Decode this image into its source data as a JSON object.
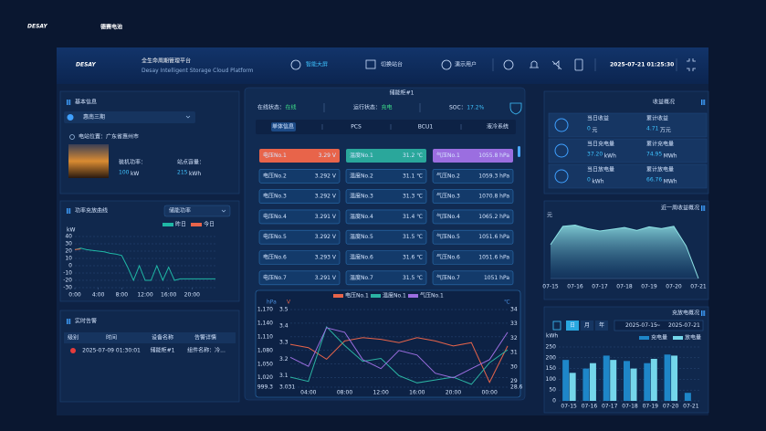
{
  "brand": {
    "logo": "DESAY",
    "name": "德赛电池"
  },
  "header": {
    "logo": "DESAY",
    "title": "全生命周期管理平台",
    "subtitle": "Desay Intelligent Storage Cloud Platform",
    "nav": [
      "智能大屏",
      "切换站台",
      "演示用户"
    ],
    "datetime": "2025-07-21 01:25:30"
  },
  "basic_info": {
    "title": "基本信息",
    "station": "惠南三期",
    "location": "电站位置：广东省惠州市",
    "power_label": "装机功率：",
    "power_value": "100",
    "power_unit": "kW",
    "capacity_label": "站点容量：",
    "capacity_value": "215",
    "capacity_unit": "kWh"
  },
  "power_chart": {
    "type": "line",
    "title": "功率充放曲线",
    "select": "储能功率",
    "y_unit": "kW",
    "x": [
      0,
      1,
      2,
      3,
      4,
      5,
      6,
      7,
      8,
      9,
      10,
      11,
      12,
      13,
      14,
      15,
      16,
      17,
      18,
      19,
      20,
      21,
      22,
      23,
      24
    ],
    "xlim": [
      0,
      24
    ],
    "xticks": [
      {
        "value": 0,
        "label": "0:00"
      },
      {
        "value": 4,
        "label": "4:00"
      },
      {
        "value": 8,
        "label": "8:00"
      },
      {
        "value": 12,
        "label": "12:00"
      },
      {
        "value": 16,
        "label": "16:00"
      },
      {
        "value": 20,
        "label": "20:00"
      }
    ],
    "ylim": [
      -30,
      40
    ],
    "yticks": [
      40,
      30,
      20,
      10,
      0,
      -10,
      -20,
      -30
    ],
    "grid": true,
    "series": [
      {
        "name": "昨日",
        "color": "#1fb8a6",
        "values": [
          22,
          24,
          22,
          21,
          20,
          19,
          17,
          16,
          14,
          -2,
          -20,
          0,
          -20,
          -20,
          0,
          -20,
          -2,
          -20,
          -18,
          -18,
          -18,
          -18,
          -18,
          -18,
          -18
        ]
      },
      {
        "name": "今日",
        "color": "#e8644a",
        "values": [
          22,
          23,
          null,
          null,
          null,
          null,
          null,
          null,
          null,
          null,
          null,
          null,
          null,
          null,
          null,
          null,
          null,
          null,
          null,
          null,
          null,
          null,
          null,
          null,
          null
        ]
      }
    ]
  },
  "alarms": {
    "title": "实时告警",
    "columns": [
      "级别",
      "时间",
      "设备名称",
      "告警详情"
    ],
    "rows": [
      {
        "time": "2025-07-09 01:30:01",
        "device": "储能柜#1",
        "detail": "组件名称：冷..."
      }
    ]
  },
  "cabinet": {
    "title": "储能柜#1",
    "online_label": "在线状态：",
    "online_value": "在线",
    "run_label": "运行状态：",
    "run_value": "充电",
    "soc_label": "SOC：",
    "soc_value": "17.2%",
    "tabs": [
      "单体信息",
      "PCS",
      "BCU1",
      "液冷系统"
    ],
    "cells": [
      [
        [
          "电压No.1",
          "3.29 V"
        ],
        [
          "温度No.1",
          "31.2 ℃"
        ],
        [
          "气压No.1",
          "1055.8 hPa"
        ]
      ],
      [
        [
          "电压No.2",
          "3.292 V"
        ],
        [
          "温度No.2",
          "31.1 ℃"
        ],
        [
          "气压No.2",
          "1059.3 hPa"
        ]
      ],
      [
        [
          "电压No.3",
          "3.292 V"
        ],
        [
          "温度No.3",
          "31.3 ℃"
        ],
        [
          "气压No.3",
          "1070.8 hPa"
        ]
      ],
      [
        [
          "电压No.4",
          "3.291 V"
        ],
        [
          "温度No.4",
          "31.4 ℃"
        ],
        [
          "气压No.4",
          "1065.2 hPa"
        ]
      ],
      [
        [
          "电压No.5",
          "3.292 V"
        ],
        [
          "温度No.5",
          "31.5 ℃"
        ],
        [
          "气压No.5",
          "1051.6 hPa"
        ]
      ],
      [
        [
          "电压No.6",
          "3.293 V"
        ],
        [
          "温度No.6",
          "31.6 ℃"
        ],
        [
          "气压No.6",
          "1051.6 hPa"
        ]
      ],
      [
        [
          "电压No.7",
          "3.291 V"
        ],
        [
          "温度No.7",
          "31.5 ℃"
        ],
        [
          "气压No.7",
          "1051 hPa"
        ]
      ]
    ]
  },
  "cell_chart": {
    "type": "line",
    "y_label": "hPa",
    "y2_label": "V",
    "y3_label": "℃",
    "categories": [
      null,
      "04:00",
      null,
      "08:00",
      null,
      "12:00",
      null,
      "16:00",
      null,
      "20:00",
      null,
      "00:00",
      null
    ],
    "ylim": [
      999.3,
      1170
    ],
    "yticks": [
      {
        "value": 1170,
        "label": "1,170"
      },
      {
        "value": 1140,
        "label": "1,140"
      },
      {
        "value": 1110,
        "label": "1,110"
      },
      {
        "value": 1080,
        "label": "1,080"
      },
      {
        "value": 1050,
        "label": "1,050"
      },
      {
        "value": 1020,
        "label": "1,020"
      },
      999.3
    ],
    "y2lim": [
      3.031,
      3.5
    ],
    "y2ticks": [
      3.5,
      3.4,
      3.3,
      3.2,
      3.1,
      3.031
    ],
    "y3lim": [
      28.6,
      34
    ],
    "y3ticks": [
      34,
      33,
      32,
      31,
      30,
      29,
      28.6
    ],
    "series": [
      {
        "name": "电压No.1",
        "color": "#e8644a",
        "axis": "y2",
        "values": [
          3.29,
          3.27,
          3.2,
          3.31,
          3.33,
          3.32,
          3.3,
          3.33,
          3.31,
          3.28,
          3.3,
          3.06,
          3.28
        ]
      },
      {
        "name": "温度No.1",
        "color": "#2bb3a3",
        "axis": "y3",
        "values": [
          29.3,
          29,
          32.8,
          31.5,
          30.4,
          30.6,
          29.4,
          28.9,
          29.1,
          29.3,
          28.8,
          30.3,
          31.2
        ]
      },
      {
        "name": "气压No.1",
        "color": "#9b6ee0",
        "axis": "y",
        "values": [
          1065,
          1045,
          1130,
          1120,
          1060,
          1040,
          1080,
          1070,
          1030,
          1020,
          1040,
          1060,
          1120
        ]
      }
    ]
  },
  "revenue": {
    "title": "收益概况",
    "items": [
      [
        {
          "label": "当日收益",
          "value": "0",
          "unit": "元"
        },
        {
          "label": "累计收益",
          "value": "4.71",
          "unit": "万元"
        }
      ],
      [
        {
          "label": "当日充电量",
          "value": "37.20",
          "unit": "kWh"
        },
        {
          "label": "累计充电量",
          "value": "74.95",
          "unit": "MWh"
        }
      ],
      [
        {
          "label": "当日放电量",
          "value": "0",
          "unit": "kWh"
        },
        {
          "label": "累计放电量",
          "value": "66.76",
          "unit": "MWh"
        }
      ]
    ]
  },
  "week_revenue": {
    "type": "area",
    "title": "近一周收益概况",
    "y_unit": "元",
    "color": "#8fe3e6",
    "categories": [
      "07-15",
      null,
      "07-16",
      null,
      "07-17",
      null,
      "07-18",
      null,
      "07-19",
      null,
      "07-20",
      null,
      "07-21"
    ],
    "values": [
      57,
      88,
      90,
      84,
      80,
      83,
      86,
      81,
      87,
      84,
      88,
      55,
      0
    ],
    "ylim": [
      0,
      100
    ]
  },
  "charge_chart": {
    "type": "bar",
    "title": "充放电概况",
    "tabs": [
      "日",
      "月",
      "年"
    ],
    "date_from": "2025-07-15",
    "date_sep": "~",
    "date_to": "2025-07-21",
    "y_unit": "kWh",
    "categories": [
      "07-15",
      "07-16",
      "07-17",
      "07-18",
      "07-19",
      "07-20",
      "07-21"
    ],
    "ylim": [
      0,
      250
    ],
    "yticks": [
      250,
      200,
      150,
      100,
      50,
      0
    ],
    "series": [
      {
        "name": "充电量",
        "color": "#1e86c8",
        "values": [
          190,
          150,
          210,
          185,
          175,
          215,
          37.2
        ]
      },
      {
        "name": "放电量",
        "color": "#74d6ea",
        "values": [
          130,
          175,
          190,
          150,
          195,
          210,
          0
        ]
      }
    ]
  }
}
